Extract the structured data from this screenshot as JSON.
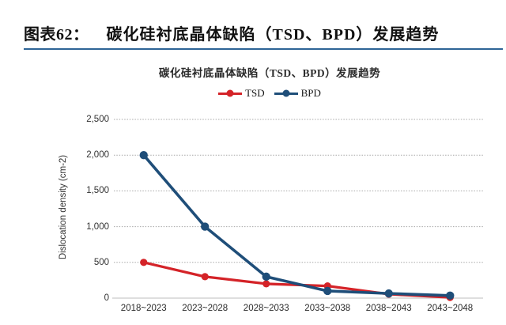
{
  "header": {
    "tag": "图表62：",
    "title": "碳化硅衬底晶体缺陷（TSD、BPD）发展趋势"
  },
  "chart_data": {
    "type": "line",
    "title": "碳化硅衬底晶体缺陷（TSD、BPD）发展趋势",
    "categories": [
      "2018~2023",
      "2023~2028",
      "2028~2033",
      "2033~2038",
      "2038~2043",
      "2043~2048"
    ],
    "series": [
      {
        "name": "TSD",
        "color": "#d42328",
        "values": [
          500,
          300,
          200,
          170,
          55,
          10
        ]
      },
      {
        "name": "BPD",
        "color": "#1f4e79",
        "values": [
          2000,
          1000,
          300,
          100,
          65,
          35
        ]
      }
    ],
    "xlabel": "",
    "ylabel": "Dislocation density (cm-2)",
    "ylim": [
      0,
      2500
    ],
    "yticks": [
      0,
      500,
      1000,
      1500,
      2000,
      2500
    ],
    "ytick_labels": [
      "0",
      "500",
      "1,000",
      "1,500",
      "2,000",
      "2,500"
    ],
    "grid": "horizontal-dashed",
    "legend_position": "top-center"
  },
  "colors": {
    "header_rule": "#2e6496",
    "gridline": "#a8a8a8",
    "axis_line": "#c9c9c9",
    "background": "#ffffff",
    "tsd_red": "#d42328",
    "bpd_blue": "#1f4e79"
  }
}
